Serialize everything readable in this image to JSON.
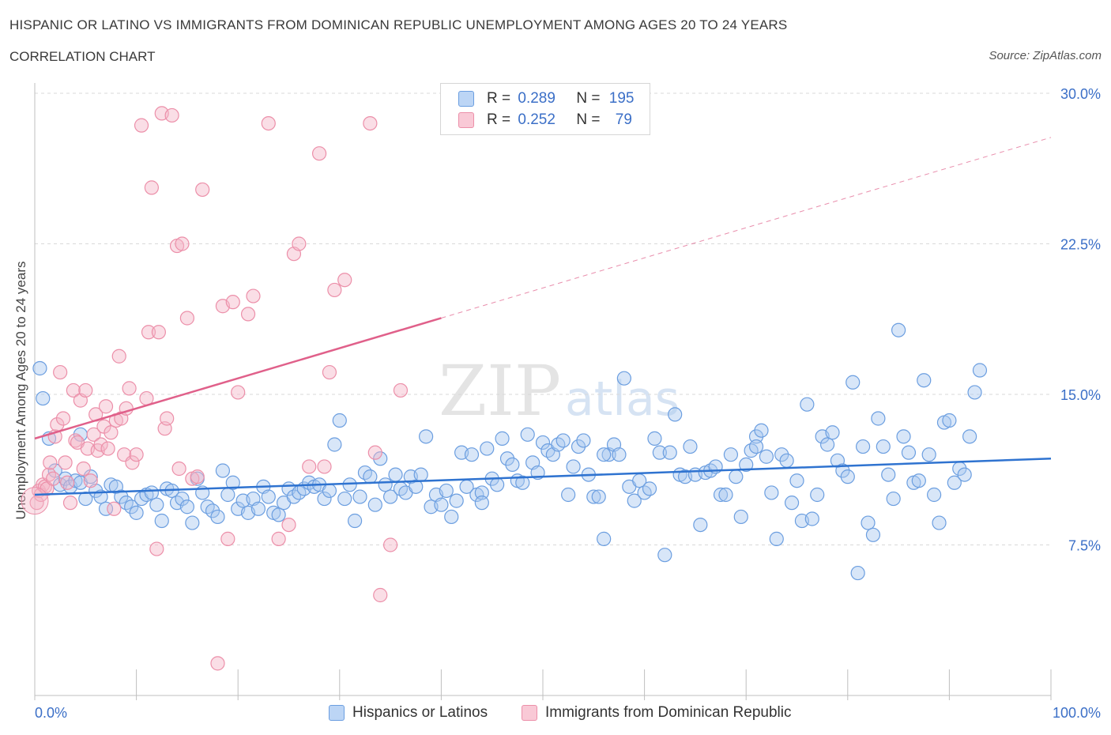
{
  "header": {
    "title": "HISPANIC OR LATINO VS IMMIGRANTS FROM DOMINICAN REPUBLIC UNEMPLOYMENT AMONG AGES 20 TO 24 YEARS",
    "subtitle": "CORRELATION CHART",
    "source": "Source: ZipAtlas.com"
  },
  "stats": {
    "blue": {
      "r_label": "R = ",
      "r": "0.289",
      "n_label": "N = ",
      "n": "195"
    },
    "pink": {
      "r_label": "R = ",
      "r": "0.252",
      "n_label": "N = ",
      "n": "79"
    }
  },
  "colors": {
    "blue_fill": "#a9c8f0",
    "blue_stroke": "#6b9ee0",
    "blue_line": "#2f73d0",
    "pink_fill": "#f5b6c8",
    "pink_stroke": "#ec8fa9",
    "pink_line": "#e0608a",
    "grid": "#d9d9d9",
    "tick_text": "#3b6fc7"
  },
  "chart_data": {
    "type": "scatter",
    "title": "HISPANIC OR LATINO VS IMMIGRANTS FROM DOMINICAN REPUBLIC UNEMPLOYMENT AMONG AGES 20 TO 24 YEARS",
    "xlabel": "",
    "ylabel": "Unemployment Among Ages 20 to 24 years",
    "xlim": [
      0,
      100
    ],
    "ylim": [
      0,
      30
    ],
    "x_tick_labels": [
      "0.0%",
      "100.0%"
    ],
    "y_ticks": [
      7.5,
      15.0,
      22.5,
      30.0
    ],
    "y_tick_labels": [
      "7.5%",
      "15.0%",
      "22.5%",
      "30.0%"
    ],
    "grid": true,
    "legend_placement": "bottom",
    "watermark": "ZIPatlas",
    "series": [
      {
        "name": "Hispanics or Latinos",
        "color": "#6b9ee0",
        "trend": {
          "x": [
            0,
            100
          ],
          "y": [
            10.0,
            11.8
          ],
          "dashed_from": null
        },
        "points": [
          [
            0.5,
            16.3
          ],
          [
            0.8,
            14.8
          ],
          [
            1.4,
            12.8
          ],
          [
            2.0,
            11.2
          ],
          [
            2.5,
            10.5
          ],
          [
            3.0,
            10.8
          ],
          [
            3.5,
            10.4
          ],
          [
            4.0,
            10.7
          ],
          [
            4.5,
            10.6
          ],
          [
            5.0,
            9.8
          ],
          [
            5.5,
            10.9
          ],
          [
            6.0,
            10.2
          ],
          [
            6.5,
            9.9
          ],
          [
            7.0,
            9.3
          ],
          [
            7.5,
            10.5
          ],
          [
            8.0,
            10.4
          ],
          [
            8.5,
            9.9
          ],
          [
            9.0,
            9.6
          ],
          [
            9.5,
            9.4
          ],
          [
            10.0,
            9.1
          ],
          [
            10.5,
            9.8
          ],
          [
            11.0,
            10.0
          ],
          [
            11.5,
            10.1
          ],
          [
            12.0,
            9.5
          ],
          [
            12.5,
            8.7
          ],
          [
            13.0,
            10.3
          ],
          [
            13.5,
            10.2
          ],
          [
            14.0,
            9.6
          ],
          [
            14.5,
            9.8
          ],
          [
            15.0,
            9.4
          ],
          [
            15.5,
            8.6
          ],
          [
            16.0,
            10.8
          ],
          [
            16.5,
            10.1
          ],
          [
            17.0,
            9.4
          ],
          [
            17.5,
            9.2
          ],
          [
            18.0,
            8.9
          ],
          [
            18.5,
            11.2
          ],
          [
            19.0,
            10.0
          ],
          [
            19.5,
            10.6
          ],
          [
            20.0,
            9.3
          ],
          [
            20.5,
            9.7
          ],
          [
            21.0,
            9.1
          ],
          [
            21.5,
            9.8
          ],
          [
            22.0,
            9.3
          ],
          [
            22.5,
            10.4
          ],
          [
            23.0,
            9.9
          ],
          [
            23.5,
            9.1
          ],
          [
            24.0,
            9.0
          ],
          [
            24.5,
            9.6
          ],
          [
            25.0,
            10.3
          ],
          [
            25.5,
            9.9
          ],
          [
            26.0,
            10.1
          ],
          [
            26.5,
            10.3
          ],
          [
            27.0,
            10.6
          ],
          [
            27.5,
            10.4
          ],
          [
            28.0,
            10.5
          ],
          [
            28.5,
            9.8
          ],
          [
            29.0,
            10.2
          ],
          [
            29.5,
            12.5
          ],
          [
            30.0,
            13.7
          ],
          [
            30.5,
            9.8
          ],
          [
            31.0,
            10.5
          ],
          [
            31.5,
            8.7
          ],
          [
            32.0,
            9.9
          ],
          [
            32.5,
            11.1
          ],
          [
            33.0,
            10.9
          ],
          [
            33.5,
            9.5
          ],
          [
            34.0,
            11.8
          ],
          [
            34.5,
            10.5
          ],
          [
            35.0,
            9.9
          ],
          [
            35.5,
            11.0
          ],
          [
            36.0,
            10.3
          ],
          [
            36.5,
            10.1
          ],
          [
            37.0,
            10.9
          ],
          [
            37.5,
            10.4
          ],
          [
            38.0,
            11.0
          ],
          [
            38.5,
            12.9
          ],
          [
            39.0,
            9.4
          ],
          [
            39.5,
            10.0
          ],
          [
            40.0,
            9.5
          ],
          [
            40.5,
            10.2
          ],
          [
            41.0,
            8.9
          ],
          [
            41.5,
            9.7
          ],
          [
            42.0,
            12.1
          ],
          [
            42.5,
            10.4
          ],
          [
            43.0,
            12.0
          ],
          [
            43.5,
            10.0
          ],
          [
            44.0,
            10.1
          ],
          [
            44.5,
            12.3
          ],
          [
            45.0,
            10.8
          ],
          [
            45.5,
            10.5
          ],
          [
            46.0,
            12.8
          ],
          [
            46.5,
            11.8
          ],
          [
            47.0,
            11.5
          ],
          [
            47.5,
            10.7
          ],
          [
            48.0,
            10.6
          ],
          [
            48.5,
            13.0
          ],
          [
            49.0,
            11.6
          ],
          [
            49.5,
            11.1
          ],
          [
            50.0,
            12.6
          ],
          [
            50.5,
            12.2
          ],
          [
            51.0,
            12.0
          ],
          [
            51.5,
            12.5
          ],
          [
            52.0,
            12.7
          ],
          [
            52.5,
            10.0
          ],
          [
            53.0,
            11.4
          ],
          [
            53.5,
            12.4
          ],
          [
            54.0,
            12.7
          ],
          [
            54.5,
            11.0
          ],
          [
            55.0,
            9.9
          ],
          [
            55.5,
            9.9
          ],
          [
            56.0,
            7.8
          ],
          [
            56.5,
            12.0
          ],
          [
            57.0,
            12.5
          ],
          [
            57.5,
            12.0
          ],
          [
            58.0,
            15.8
          ],
          [
            58.5,
            10.4
          ],
          [
            59.0,
            9.7
          ],
          [
            59.5,
            10.7
          ],
          [
            60.0,
            10.1
          ],
          [
            60.5,
            10.3
          ],
          [
            61.0,
            12.8
          ],
          [
            61.5,
            12.1
          ],
          [
            62.0,
            7.0
          ],
          [
            62.5,
            12.1
          ],
          [
            63.0,
            14.0
          ],
          [
            63.5,
            11.0
          ],
          [
            64.0,
            10.9
          ],
          [
            64.5,
            12.4
          ],
          [
            65.0,
            11.0
          ],
          [
            65.5,
            8.5
          ],
          [
            66.0,
            11.1
          ],
          [
            66.5,
            11.2
          ],
          [
            67.0,
            11.4
          ],
          [
            67.5,
            10.0
          ],
          [
            68.0,
            10.0
          ],
          [
            68.5,
            12.0
          ],
          [
            69.0,
            10.9
          ],
          [
            69.5,
            8.9
          ],
          [
            70.0,
            11.5
          ],
          [
            70.5,
            12.2
          ],
          [
            71.0,
            12.9
          ],
          [
            71.5,
            13.2
          ],
          [
            72.0,
            11.9
          ],
          [
            72.5,
            10.1
          ],
          [
            73.0,
            7.8
          ],
          [
            73.5,
            12.0
          ],
          [
            74.0,
            11.7
          ],
          [
            74.5,
            9.6
          ],
          [
            75.0,
            10.7
          ],
          [
            75.5,
            8.7
          ],
          [
            76.0,
            14.5
          ],
          [
            76.5,
            8.8
          ],
          [
            77.0,
            10.0
          ],
          [
            77.5,
            12.9
          ],
          [
            78.0,
            12.5
          ],
          [
            78.5,
            13.1
          ],
          [
            79.0,
            11.7
          ],
          [
            79.5,
            11.2
          ],
          [
            80.0,
            10.9
          ],
          [
            80.5,
            15.6
          ],
          [
            81.0,
            6.1
          ],
          [
            81.5,
            12.4
          ],
          [
            82.0,
            8.6
          ],
          [
            82.5,
            8.0
          ],
          [
            83.0,
            13.8
          ],
          [
            83.5,
            12.4
          ],
          [
            84.0,
            11.0
          ],
          [
            84.5,
            9.8
          ],
          [
            85.0,
            18.2
          ],
          [
            85.5,
            12.9
          ],
          [
            86.0,
            12.1
          ],
          [
            86.5,
            10.6
          ],
          [
            87.0,
            10.7
          ],
          [
            87.5,
            15.7
          ],
          [
            88.0,
            12.0
          ],
          [
            88.5,
            10.0
          ],
          [
            89.0,
            8.6
          ],
          [
            89.5,
            13.6
          ],
          [
            90.0,
            13.7
          ],
          [
            90.5,
            10.6
          ],
          [
            91.0,
            11.3
          ],
          [
            91.5,
            11.0
          ],
          [
            92.0,
            12.9
          ],
          [
            92.5,
            15.1
          ],
          [
            93.0,
            16.2
          ],
          [
            4.5,
            13.0
          ],
          [
            71.0,
            12.4
          ],
          [
            56.0,
            12.0
          ],
          [
            44.0,
            9.6
          ]
        ]
      },
      {
        "name": "Immigrants from Dominican Republic",
        "color": "#ec8fa9",
        "trend": {
          "x": [
            0,
            100
          ],
          "y": [
            12.8,
            27.8
          ],
          "dashed_from": 40
        },
        "points": [
          [
            0.2,
            9.6
          ],
          [
            0.4,
            10.2
          ],
          [
            0.6,
            10.0
          ],
          [
            0.8,
            10.5
          ],
          [
            1.0,
            10.4
          ],
          [
            1.2,
            10.3
          ],
          [
            1.4,
            11.0
          ],
          [
            1.5,
            11.6
          ],
          [
            1.8,
            10.8
          ],
          [
            2.0,
            12.9
          ],
          [
            2.2,
            13.5
          ],
          [
            2.5,
            16.1
          ],
          [
            2.8,
            13.8
          ],
          [
            3.0,
            11.6
          ],
          [
            3.2,
            10.6
          ],
          [
            3.5,
            9.6
          ],
          [
            3.8,
            15.2
          ],
          [
            4.0,
            12.7
          ],
          [
            4.2,
            12.6
          ],
          [
            4.5,
            14.7
          ],
          [
            4.8,
            11.3
          ],
          [
            5.0,
            15.2
          ],
          [
            5.2,
            12.3
          ],
          [
            5.5,
            10.7
          ],
          [
            5.8,
            13.0
          ],
          [
            6.0,
            14.0
          ],
          [
            6.2,
            12.2
          ],
          [
            6.5,
            12.5
          ],
          [
            6.8,
            13.4
          ],
          [
            7.0,
            14.4
          ],
          [
            7.2,
            12.3
          ],
          [
            7.5,
            13.1
          ],
          [
            7.8,
            9.3
          ],
          [
            8.0,
            13.7
          ],
          [
            8.3,
            16.9
          ],
          [
            8.5,
            13.8
          ],
          [
            8.8,
            12.0
          ],
          [
            9.0,
            14.3
          ],
          [
            9.3,
            15.3
          ],
          [
            9.6,
            11.6
          ],
          [
            10.0,
            12.0
          ],
          [
            10.5,
            28.4
          ],
          [
            11.0,
            14.8
          ],
          [
            11.2,
            18.1
          ],
          [
            11.5,
            25.3
          ],
          [
            12.0,
            7.3
          ],
          [
            12.2,
            18.1
          ],
          [
            12.5,
            29.0
          ],
          [
            12.8,
            13.3
          ],
          [
            13.0,
            13.8
          ],
          [
            13.5,
            28.9
          ],
          [
            14.0,
            22.4
          ],
          [
            14.2,
            11.3
          ],
          [
            14.5,
            22.5
          ],
          [
            15.0,
            18.8
          ],
          [
            15.5,
            10.8
          ],
          [
            16.0,
            10.9
          ],
          [
            16.5,
            25.2
          ],
          [
            18.0,
            1.6
          ],
          [
            18.5,
            19.4
          ],
          [
            19.0,
            7.8
          ],
          [
            19.5,
            19.6
          ],
          [
            20.0,
            15.1
          ],
          [
            21.0,
            19.0
          ],
          [
            21.5,
            19.9
          ],
          [
            23.0,
            28.5
          ],
          [
            24.0,
            7.8
          ],
          [
            25.0,
            8.5
          ],
          [
            25.5,
            22.0
          ],
          [
            26.0,
            22.5
          ],
          [
            27.0,
            11.4
          ],
          [
            28.0,
            27.0
          ],
          [
            28.5,
            11.4
          ],
          [
            29.0,
            16.1
          ],
          [
            29.5,
            20.2
          ],
          [
            30.5,
            20.7
          ],
          [
            33.0,
            28.5
          ],
          [
            34.0,
            5.0
          ],
          [
            35.0,
            7.5
          ],
          [
            36.0,
            15.2
          ],
          [
            33.5,
            12.1
          ]
        ]
      }
    ]
  }
}
